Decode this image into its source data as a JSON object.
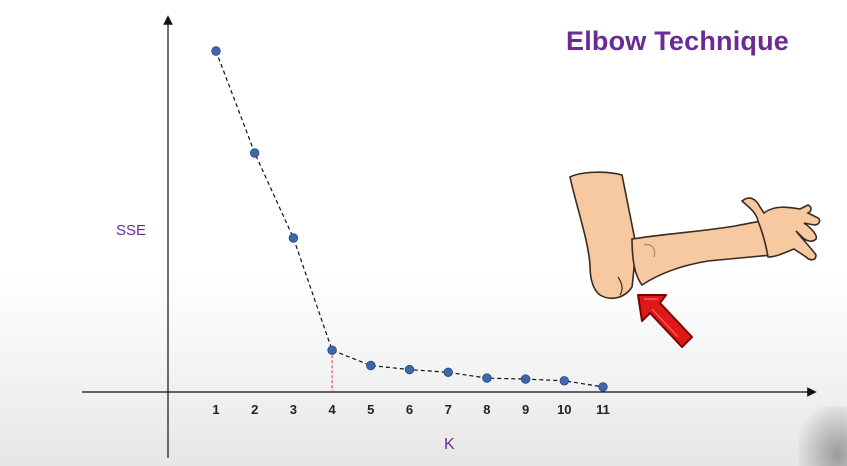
{
  "slide": {
    "title": "Elbow Technique"
  },
  "illustration": {
    "subject": "bent arm with elbow",
    "pointer": "red-arrow-icon",
    "arrow_color": "#e01818",
    "skin_color": "#f6c9a0"
  },
  "chart_data": {
    "type": "line",
    "title": "",
    "xlabel": "K",
    "ylabel": "SSE",
    "x": [
      1,
      2,
      3,
      4,
      5,
      6,
      7,
      8,
      9,
      10,
      11
    ],
    "series": [
      {
        "values": [
          100,
          70,
          45,
          12,
          7.5,
          6.3,
          5.5,
          3.8,
          3.5,
          3,
          1.2
        ],
        "color": "#3e67b0",
        "line_style": "dashed"
      }
    ],
    "xlim": [
      0,
      11.5
    ],
    "ylim": [
      0,
      100
    ],
    "y_ticks_shown": false,
    "grid": false,
    "legend": "none",
    "elbow_k": 4,
    "elbow_marker_color": "#d23a3a",
    "axis_color": "#111111",
    "label_color": "#6a2b94"
  }
}
